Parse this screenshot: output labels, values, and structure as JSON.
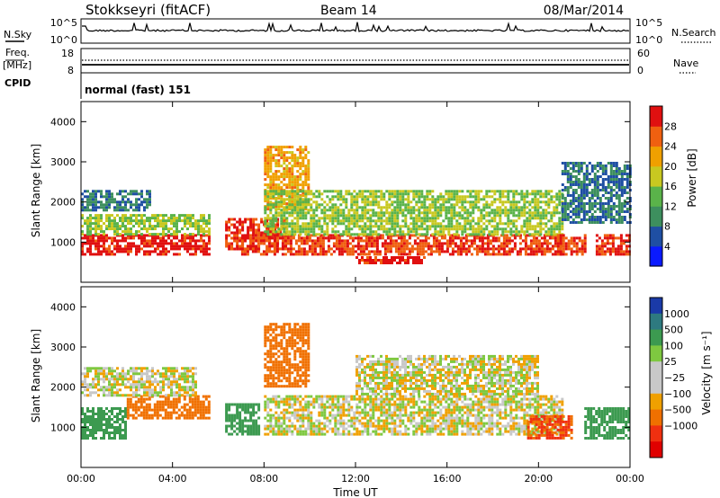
{
  "header": {
    "station": "Stokkseyri (fitACF)",
    "beam": "Beam 14",
    "date": "08/Mar/2014"
  },
  "nsky_panel": {
    "left_label": "N.Sky",
    "left_ticks": [
      "10^5",
      "10^0"
    ],
    "right_ticks": [
      "10^5",
      "10^0"
    ],
    "right_label": "N.Search"
  },
  "freq_panel": {
    "left_label_1": "Freq.",
    "left_label_2": "[MHz]",
    "left_ticks": [
      "18",
      "8"
    ],
    "right_ticks": [
      "60",
      "0"
    ],
    "right_label": "Nave",
    "cpid_label": "CPID",
    "cpid_value": "normal (fast) 151"
  },
  "x_axis": {
    "title": "Time UT",
    "ticks": [
      "00:00",
      "04:00",
      "08:00",
      "12:00",
      "16:00",
      "20:00",
      "00:00"
    ]
  },
  "power_panel": {
    "ylabel": "Slant Range [km]",
    "yticks": [
      "1000",
      "2000",
      "3000",
      "4000"
    ],
    "colorbar_label": "Power [dB]",
    "colorbar_ticks": [
      "4",
      "8",
      "12",
      "16",
      "20",
      "24",
      "28"
    ],
    "colorbar_colors": [
      "#0a1aff",
      "#1f4fa3",
      "#3d8f5e",
      "#5ab34a",
      "#c8c820",
      "#f0a000",
      "#f06010",
      "#e01010"
    ]
  },
  "velocity_panel": {
    "ylabel": "Slant Range [km]",
    "yticks": [
      "1000",
      "2000",
      "3000",
      "4000"
    ],
    "colorbar_label": "Velocity [m s⁻¹]",
    "colorbar_ticks": [
      "1000",
      "500",
      "100",
      "25",
      "−25",
      "−100",
      "−500",
      "−1000"
    ],
    "colorbar_colors": [
      "#1a3aa8",
      "#2e7a80",
      "#3c9a50",
      "#7ec840",
      "#c8c8c8",
      "#c8c8c8",
      "#f0a000",
      "#f07000",
      "#f03010",
      "#e00000"
    ]
  },
  "chart_data": [
    {
      "type": "heatmap",
      "name": "Power",
      "x_range_hours": [
        0,
        24
      ],
      "ylim": [
        0,
        4500
      ],
      "regions": [
        {
          "x": [
            0,
            5.6
          ],
          "y": [
            700,
            1200
          ],
          "value": 28
        },
        {
          "x": [
            0,
            5.6
          ],
          "y": [
            1200,
            1700
          ],
          "value": 14
        },
        {
          "x": [
            0,
            3.0
          ],
          "y": [
            1800,
            2300
          ],
          "value": 6
        },
        {
          "x": [
            6.3,
            9.0
          ],
          "y": [
            800,
            1600
          ],
          "value": 26
        },
        {
          "x": [
            8.0,
            10.0
          ],
          "y": [
            1800,
            3400
          ],
          "value": 20
        },
        {
          "x": [
            7.0,
            21.0
          ],
          "y": [
            700,
            1200
          ],
          "value": 26
        },
        {
          "x": [
            8.0,
            21.0
          ],
          "y": [
            1200,
            2300
          ],
          "value": 14
        },
        {
          "x": [
            12.0,
            15.0
          ],
          "y": [
            450,
            650
          ],
          "value": 28
        },
        {
          "x": [
            20.8,
            22.0
          ],
          "y": [
            700,
            1200
          ],
          "value": 26
        },
        {
          "x": [
            22.5,
            24.0
          ],
          "y": [
            700,
            1200
          ],
          "value": 27
        },
        {
          "x": [
            21.0,
            24.0
          ],
          "y": [
            1500,
            3000
          ],
          "value": 6
        }
      ]
    },
    {
      "type": "heatmap",
      "name": "Velocity",
      "x_range_hours": [
        0,
        24
      ],
      "ylim": [
        0,
        4500
      ],
      "regions": [
        {
          "x": [
            0,
            2.0
          ],
          "y": [
            700,
            1500
          ],
          "value": 300
        },
        {
          "x": [
            2.0,
            5.6
          ],
          "y": [
            1200,
            1800
          ],
          "value": -300
        },
        {
          "x": [
            0,
            5.0
          ],
          "y": [
            1800,
            2500
          ],
          "value": 0
        },
        {
          "x": [
            6.3,
            7.8
          ],
          "y": [
            800,
            1600
          ],
          "value": 200
        },
        {
          "x": [
            8.0,
            10.0
          ],
          "y": [
            2000,
            3600
          ],
          "value": -400
        },
        {
          "x": [
            8.0,
            21.0
          ],
          "y": [
            800,
            1800
          ],
          "value": 0
        },
        {
          "x": [
            12.0,
            20.0
          ],
          "y": [
            1800,
            2800
          ],
          "value": 0
        },
        {
          "x": [
            19.5,
            21.5
          ],
          "y": [
            700,
            1300
          ],
          "value": -500
        },
        {
          "x": [
            22.0,
            24.0
          ],
          "y": [
            700,
            1500
          ],
          "value": 300
        }
      ]
    }
  ]
}
